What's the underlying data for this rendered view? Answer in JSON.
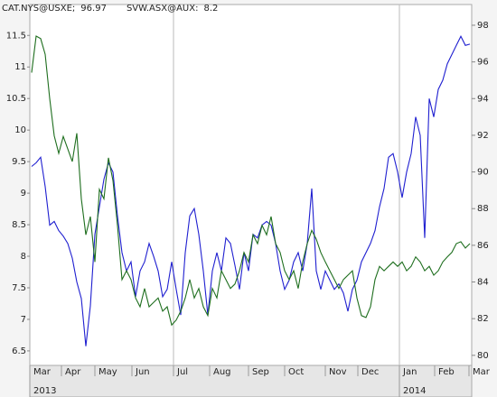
{
  "chart_data": {
    "type": "line",
    "series": [
      {
        "name": "CAT.NYS@USXE;",
        "last": 96.97,
        "color": "#1f1fd0",
        "axis": "y2",
        "values": [
          90.3,
          90.5,
          90.8,
          89.2,
          87.1,
          87.3,
          86.8,
          86.5,
          86.1,
          85.3,
          84.0,
          83.1,
          80.5,
          82.7,
          86.6,
          88.1,
          89.6,
          90.5,
          90.0,
          87.6,
          85.6,
          84.6,
          85.1,
          83.2,
          84.6,
          85.1,
          86.1,
          85.4,
          84.6,
          83.2,
          83.6,
          85.1,
          83.6,
          82.2,
          85.6,
          87.6,
          88.0,
          86.6,
          84.6,
          82.2,
          84.6,
          85.6,
          84.6,
          86.4,
          86.1,
          84.9,
          83.6,
          85.6,
          84.6,
          86.6,
          86.4,
          87.1,
          87.3,
          87.1,
          86.1,
          84.6,
          83.6,
          84.1,
          85.1,
          85.6,
          84.6,
          86.1,
          89.1,
          84.6,
          83.6,
          84.6,
          84.1,
          83.6,
          83.9,
          83.4,
          82.4,
          83.6,
          84.1,
          85.1,
          85.6,
          86.1,
          86.8,
          88.1,
          89.1,
          90.8,
          91.0,
          90.0,
          88.6,
          90.0,
          91.0,
          93.0,
          92.0,
          86.4,
          94.0,
          93.0,
          94.5,
          95.0,
          95.9,
          96.4,
          96.9,
          97.4,
          96.9,
          96.97
        ]
      },
      {
        "name": "SVW.ASX@AUX:",
        "last": 8.2,
        "color": "#1e6e1e",
        "axis": "y",
        "values": [
          10.91,
          11.49,
          11.45,
          11.2,
          10.5,
          9.91,
          9.63,
          9.9,
          9.7,
          9.5,
          9.95,
          8.91,
          8.34,
          8.63,
          7.91,
          9.06,
          8.91,
          9.56,
          9.2,
          8.49,
          7.63,
          7.77,
          7.63,
          7.34,
          7.2,
          7.49,
          7.2,
          7.27,
          7.34,
          7.13,
          7.2,
          6.91,
          6.99,
          7.13,
          7.34,
          7.63,
          7.34,
          7.49,
          7.2,
          7.06,
          7.49,
          7.34,
          7.77,
          7.63,
          7.49,
          7.56,
          7.77,
          8.06,
          7.91,
          8.34,
          8.2,
          8.49,
          8.34,
          8.63,
          8.2,
          8.06,
          7.77,
          7.63,
          7.77,
          7.49,
          7.91,
          8.2,
          8.41,
          8.27,
          8.06,
          7.91,
          7.77,
          7.63,
          7.49,
          7.63,
          7.7,
          7.77,
          7.34,
          7.06,
          7.03,
          7.2,
          7.63,
          7.84,
          7.77,
          7.84,
          7.91,
          7.84,
          7.91,
          7.77,
          7.84,
          7.99,
          7.91,
          7.77,
          7.84,
          7.7,
          7.77,
          7.91,
          7.99,
          8.06,
          8.2,
          8.23,
          8.13,
          8.2
        ]
      }
    ],
    "xlim": [
      -0.4,
      97.4
    ],
    "xticks": [
      {
        "value": -0.4,
        "label": "Mar"
      },
      {
        "value": 6.6,
        "label": "Apr"
      },
      {
        "value": 14,
        "label": "May"
      },
      {
        "value": 22.2,
        "label": "Jun"
      },
      {
        "value": 31.4,
        "label": "Jul"
      },
      {
        "value": 39.4,
        "label": "Aug"
      },
      {
        "value": 48,
        "label": "Sep"
      },
      {
        "value": 56,
        "label": "Oct"
      },
      {
        "value": 65,
        "label": "Nov"
      },
      {
        "value": 72.2,
        "label": "Dec"
      },
      {
        "value": 81.4,
        "label": "Jan"
      },
      {
        "value": 89.2,
        "label": "Feb"
      },
      {
        "value": 96.8,
        "label": "Mar"
      }
    ],
    "x_year_labels": [
      {
        "value": -0.4,
        "label": "2013"
      },
      {
        "value": 81.4,
        "label": "2014"
      }
    ],
    "ylim": [
      6.27,
      11.99
    ],
    "yticks": [
      6.5,
      7,
      7.5,
      8,
      8.5,
      9,
      9.5,
      10,
      10.5,
      11,
      11.5
    ],
    "y2lim": [
      79.45,
      99.13
    ],
    "y2ticks": [
      80,
      82,
      84,
      86,
      88,
      90,
      92,
      94,
      96,
      98
    ]
  }
}
